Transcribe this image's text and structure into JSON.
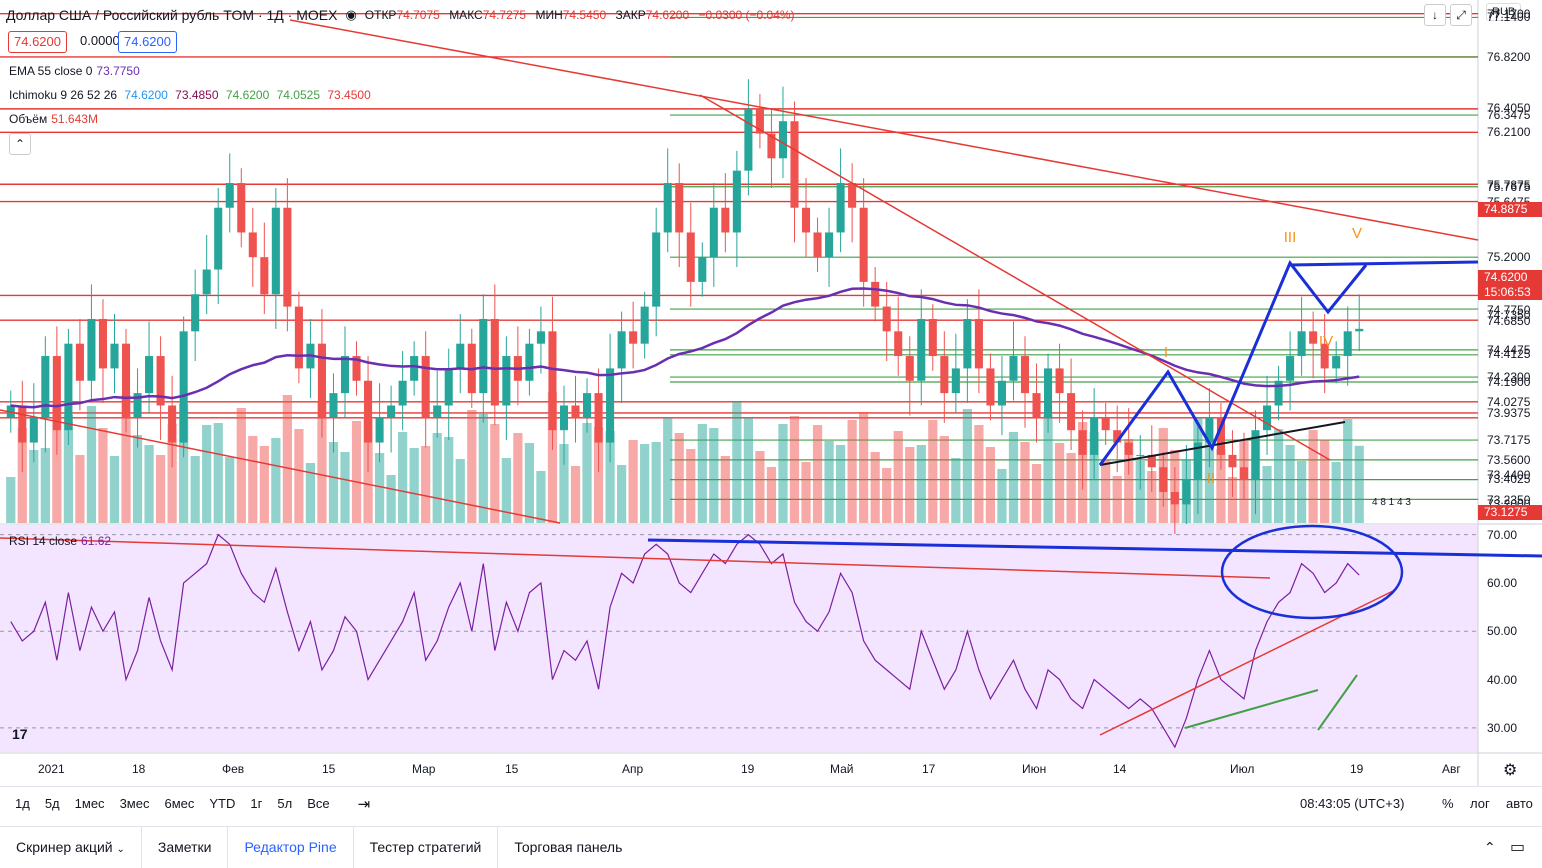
{
  "header": {
    "symbol": "Доллар США / Российский рубль TOM · 1Д · MOEX",
    "open_label": "ОТКР",
    "open": "74.7075",
    "high_label": "МАКС",
    "high": "74.7275",
    "low_label": "МИН",
    "low": "74.5450",
    "close_label": "ЗАКР",
    "close": "74.6200",
    "change": "−0.0300 (−0.04%)",
    "bid": "74.6200",
    "spread": "0.0000",
    "ask": "74.6200",
    "currency": "RUB"
  },
  "indicators": {
    "ema": {
      "name": "EMA 55 close 0",
      "value": "73.7750"
    },
    "ichimoku": {
      "name": "Ichimoku 9 26 52 26",
      "values": [
        "74.6200",
        "73.4850",
        "74.6200",
        "74.0525",
        "73.4500"
      ]
    },
    "volume": {
      "name": "Объём",
      "value": "51.643M"
    },
    "rsi": {
      "name": "RSI 14 close",
      "value": "61.62"
    }
  },
  "price_scale": [
    "77.1700",
    "77.1400",
    "76.8200",
    "76.4050",
    "76.3475",
    "76.2100",
    "75.7875",
    "75.7675",
    "75.6475",
    "75.2000",
    "74.7750",
    "74.7350",
    "74.6850",
    "74.4475",
    "74.4125",
    "74.2300",
    "74.1900",
    "74.0275",
    "73.9375",
    "73.7175",
    "73.5600",
    "73.4400",
    "73.4025",
    "73.2350",
    "73.2000"
  ],
  "price_badges": {
    "red1": "74.8875",
    "current": "74.6200",
    "countdown": "15:06:53",
    "low": "73.1275"
  },
  "wave_labels": [
    "I",
    "II",
    "III",
    "IV",
    "V"
  ],
  "volume_annotation": "4 8 1 4 3",
  "rsi_scale": [
    "70.00",
    "60.00",
    "50.00",
    "40.00",
    "30.00"
  ],
  "time_axis": [
    "2021",
    "18",
    "Фев",
    "15",
    "Мар",
    "15",
    "Апр",
    "19",
    "Май",
    "17",
    "Июн",
    "14",
    "Июл",
    "19",
    "Авг"
  ],
  "timeframes": [
    "1д",
    "5д",
    "1мес",
    "3мес",
    "6мес",
    "YTD",
    "1г",
    "5л",
    "Все"
  ],
  "clock": "08:43:05 (UTC+3)",
  "scale_options": [
    "%",
    "лог",
    "авто"
  ],
  "bottom_tabs": [
    "Скринер акций",
    "Заметки",
    "Редактор Pine",
    "Тестер стратегий",
    "Торговая панель"
  ],
  "colors": {
    "up": "#26a69a",
    "down": "#ef5350",
    "wave": "#1a2fd8",
    "rsi": "#7b1fa2",
    "rsi_bg": "#f3e5ff",
    "ema": "#6a2fb0"
  },
  "chart_data": {
    "type": "candlestick",
    "title": "Доллар США / Российский рубль TOM · 1Д · MOEX",
    "ylim": [
      73.13,
      77.2
    ],
    "x_range": [
      "2021-01",
      "2021-08"
    ],
    "close_series": [
      74.0,
      73.7,
      73.9,
      74.4,
      73.8,
      74.5,
      74.2,
      74.7,
      74.3,
      74.5,
      73.9,
      74.1,
      74.4,
      74.0,
      73.7,
      74.6,
      74.9,
      75.1,
      75.6,
      75.8,
      75.4,
      75.2,
      74.9,
      75.6,
      74.8,
      74.3,
      74.5,
      73.9,
      74.1,
      74.4,
      74.2,
      73.7,
      73.9,
      74.0,
      74.2,
      74.4,
      73.9,
      74.0,
      74.3,
      74.5,
      74.1,
      74.7,
      74.0,
      74.4,
      74.2,
      74.5,
      74.6,
      73.8,
      74.0,
      73.9,
      74.1,
      73.7,
      74.3,
      74.6,
      74.5,
      74.8,
      75.4,
      75.8,
      75.4,
      75.0,
      75.2,
      75.6,
      75.4,
      75.9,
      76.4,
      76.2,
      76.0,
      76.3,
      75.6,
      75.4,
      75.2,
      75.4,
      75.8,
      75.6,
      75.0,
      74.8,
      74.6,
      74.4,
      74.2,
      74.7,
      74.4,
      74.1,
      74.3,
      74.7,
      74.3,
      74.0,
      74.2,
      74.4,
      74.1,
      73.9,
      74.3,
      74.1,
      73.8,
      73.6,
      73.9,
      73.8,
      73.7,
      73.6,
      73.6,
      73.5,
      73.3,
      73.2,
      73.4,
      73.7,
      73.9,
      73.6,
      73.5,
      73.4,
      73.8,
      74.0,
      74.2,
      74.4,
      74.6,
      74.5,
      74.3,
      74.4,
      74.6,
      74.62
    ],
    "rsi": [
      52,
      48,
      50,
      56,
      44,
      58,
      46,
      55,
      50,
      54,
      40,
      46,
      57,
      48,
      42,
      60,
      62,
      64,
      70,
      68,
      62,
      58,
      56,
      63,
      54,
      46,
      52,
      42,
      46,
      53,
      50,
      40,
      44,
      48,
      52,
      58,
      44,
      48,
      55,
      60,
      50,
      64,
      46,
      56,
      50,
      58,
      60,
      40,
      46,
      44,
      48,
      38,
      55,
      62,
      60,
      66,
      68,
      66,
      60,
      58,
      62,
      66,
      64,
      68,
      70,
      68,
      64,
      66,
      56,
      52,
      50,
      54,
      62,
      58,
      48,
      44,
      42,
      40,
      38,
      50,
      44,
      38,
      42,
      50,
      42,
      36,
      40,
      44,
      38,
      34,
      42,
      40,
      36,
      34,
      40,
      38,
      36,
      34,
      36,
      34,
      30,
      26,
      32,
      40,
      46,
      40,
      38,
      36,
      46,
      52,
      56,
      58,
      64,
      62,
      58,
      60,
      64,
      61.62
    ],
    "rsi_ylim": [
      25,
      72
    ],
    "horizontal_levels_red": [
      77.17,
      76.82,
      76.4,
      76.21,
      75.79,
      75.65,
      74.89,
      74.69,
      74.03,
      73.94,
      73.9
    ],
    "horizontal_levels_green": [
      77.14,
      76.82,
      76.35,
      75.77,
      75.2,
      74.78,
      74.45,
      74.41,
      74.23,
      74.19,
      73.72,
      73.56,
      73.4,
      73.24
    ]
  }
}
